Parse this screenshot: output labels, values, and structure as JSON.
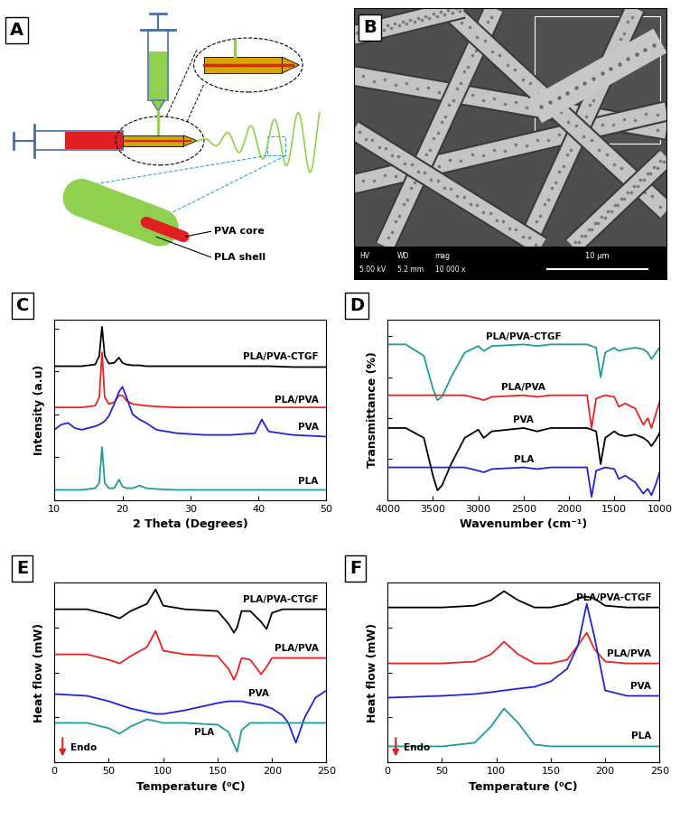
{
  "panel_A": {
    "label": "A",
    "core_label": "PVA core",
    "shell_label": "PLA shell"
  },
  "panel_B": {
    "label": "B",
    "info_headers": [
      "HV",
      "WD",
      "mag"
    ],
    "info_values": [
      "5.00 kV",
      "5.2 mm",
      "10 000 x"
    ],
    "scale_bar": "10 μm"
  },
  "chart_data": [
    {
      "type": "line",
      "title": "C",
      "x_label": "2 Theta (Degrees)",
      "y_label": "Intensity (a.u)",
      "x": [
        10,
        11,
        12,
        13,
        14,
        15,
        16,
        16.6,
        17.0,
        17.4,
        18,
        18.8,
        19.5,
        20.0,
        20.6,
        21.5,
        22.5,
        23.5,
        25,
        28,
        32,
        36,
        39.5,
        40.5,
        41.5,
        45,
        50
      ],
      "xlim": [
        10,
        50
      ],
      "xticks": [
        10,
        20,
        30,
        40,
        50
      ],
      "ylim": [
        0,
        105
      ],
      "yticks": [
        0,
        25,
        50,
        75,
        100
      ],
      "tick_labels": "x",
      "series": [
        {
          "name": "PLA/PVA-CTGF",
          "color": "#000000",
          "values": [
            78,
            78,
            78,
            78,
            78,
            78.5,
            79,
            84,
            101,
            84,
            79.5,
            80,
            83,
            80,
            79,
            78.5,
            78.5,
            78,
            78,
            78,
            78,
            78,
            78,
            78,
            78,
            77.5,
            77.5
          ]
        },
        {
          "name": "PLA/PVA",
          "color": "#e8231f",
          "values": [
            54,
            54,
            54,
            54,
            54,
            54.5,
            55,
            60,
            86,
            60,
            56,
            57,
            61,
            61,
            58,
            56,
            55.5,
            55,
            54.5,
            54,
            54,
            54,
            54,
            54,
            54,
            54,
            54
          ]
        },
        {
          "name": "PVA",
          "color": "#2323d6",
          "values": [
            41,
            44,
            45,
            42,
            41,
            42,
            43,
            44,
            45,
            46,
            49,
            56,
            63,
            66,
            60,
            50,
            47,
            45,
            41,
            39,
            38,
            38,
            39,
            47,
            40,
            38,
            37
          ]
        },
        {
          "name": "PLA",
          "color": "#1f9c9a",
          "values": [
            6,
            6,
            6,
            6,
            6,
            6.5,
            7,
            10,
            31,
            10,
            7,
            7,
            12,
            8,
            7,
            7,
            8.5,
            7,
            6.5,
            6,
            6,
            6,
            6,
            6,
            6,
            6,
            6
          ]
        }
      ]
    },
    {
      "type": "line",
      "title": "D",
      "x_label": "Wavenumber (cm⁻¹)",
      "y_label": "Transmittance (%)",
      "x": [
        4000,
        3800,
        3600,
        3500,
        3450,
        3400,
        3300,
        3150,
        3000,
        2940,
        2850,
        2500,
        2350,
        2200,
        2000,
        1800,
        1750,
        1700,
        1650,
        1600,
        1500,
        1450,
        1380,
        1270,
        1180,
        1130,
        1090,
        1040,
        1000
      ],
      "xlim": [
        4000,
        1000
      ],
      "xticks": [
        4000,
        3500,
        3000,
        2500,
        2000,
        1500,
        1000
      ],
      "ylim": [
        0,
        110
      ],
      "yticks": [
        0,
        25,
        50,
        75,
        100
      ],
      "tick_labels": "x",
      "series": [
        {
          "name": "PLA/PVA-CTGF",
          "color": "#1f9c9a",
          "values": [
            95,
            95,
            88,
            68,
            61,
            63,
            75,
            90,
            94,
            91,
            94,
            95,
            94,
            95,
            95,
            95,
            94,
            93,
            75,
            90,
            93,
            91,
            92,
            93,
            92,
            90,
            86,
            90,
            93
          ]
        },
        {
          "name": "PLA/PVA",
          "color": "#e8231f",
          "values": [
            64,
            64,
            64,
            64,
            64,
            64,
            64,
            64,
            62,
            61,
            63,
            64,
            63,
            64,
            64,
            64,
            44,
            62,
            63,
            64,
            63,
            57,
            59,
            56,
            46,
            50,
            44,
            53,
            60
          ]
        },
        {
          "name": "PVA",
          "color": "#000000",
          "values": [
            44,
            44,
            38,
            15,
            6,
            9,
            22,
            38,
            43,
            38,
            42,
            44,
            42,
            44,
            44,
            44,
            43,
            42,
            22,
            38,
            42,
            40,
            39,
            40,
            38,
            36,
            33,
            37,
            41
          ]
        },
        {
          "name": "PLA",
          "color": "#2323d6",
          "values": [
            20,
            20,
            20,
            20,
            20,
            20,
            20,
            20,
            18,
            17,
            19,
            20,
            19,
            20,
            20,
            20,
            2,
            18,
            19,
            20,
            19,
            13,
            15,
            11,
            4,
            7,
            3,
            10,
            17
          ]
        }
      ]
    },
    {
      "type": "line",
      "title": "E",
      "x_label": "Temperature (⁰C)",
      "y_label": "Heat flow (mW)",
      "annotation": "Endo",
      "x": [
        0,
        30,
        50,
        60,
        70,
        85,
        93,
        100,
        120,
        150,
        160,
        165,
        168,
        172,
        180,
        190,
        195,
        200,
        210,
        215,
        222,
        230,
        240,
        250
      ],
      "xlim": [
        0,
        250
      ],
      "xticks": [
        0,
        50,
        100,
        150,
        200,
        250
      ],
      "ylim": [
        0,
        100
      ],
      "yticks": [
        0,
        25,
        50,
        75,
        100
      ],
      "tick_labels": "x",
      "series": [
        {
          "name": "PLA/PVA-CTGF",
          "color": "#000000",
          "values": [
            85,
            85,
            82,
            80,
            84,
            88,
            96,
            87,
            85,
            84,
            77,
            72,
            75,
            84,
            84,
            78,
            74,
            83,
            85,
            85,
            85,
            85,
            85,
            85
          ]
        },
        {
          "name": "PLA/PVA",
          "color": "#e8231f",
          "values": [
            60,
            60,
            57,
            55,
            59,
            64,
            73,
            62,
            60,
            59,
            52,
            46,
            50,
            58,
            57,
            49,
            53,
            58,
            58,
            58,
            58,
            58,
            58,
            58
          ]
        },
        {
          "name": "PVA",
          "color": "#2323d6",
          "values": [
            38,
            37,
            34,
            32,
            30,
            28,
            27,
            27,
            29,
            33,
            34,
            34,
            34,
            34,
            33,
            32,
            31,
            30,
            26,
            22,
            11,
            25,
            36,
            40
          ]
        },
        {
          "name": "PLA",
          "color": "#1f9c9a",
          "values": [
            22,
            22,
            19,
            16,
            20,
            24,
            23,
            22,
            22,
            21,
            17,
            10,
            6,
            18,
            22,
            22,
            22,
            22,
            22,
            22,
            22,
            22,
            22,
            22
          ]
        }
      ]
    },
    {
      "type": "line",
      "title": "F",
      "x_label": "Temperature (⁰C)",
      "y_label": "Heat flow (mW)",
      "annotation": "Endo",
      "x": [
        0,
        50,
        80,
        95,
        107,
        120,
        135,
        150,
        165,
        175,
        183,
        190,
        200,
        220,
        250
      ],
      "xlim": [
        0,
        250
      ],
      "xticks": [
        0,
        50,
        100,
        150,
        200,
        250
      ],
      "ylim": [
        0,
        100
      ],
      "yticks": [
        0,
        25,
        50,
        75,
        100
      ],
      "tick_labels": "x",
      "series": [
        {
          "name": "PLA/PVA-CTGF",
          "color": "#000000",
          "values": [
            86,
            86,
            87,
            90,
            95,
            90,
            86,
            86,
            88,
            91,
            92,
            91,
            87,
            86,
            86
          ]
        },
        {
          "name": "PLA/PVA",
          "color": "#e8231f",
          "values": [
            55,
            55,
            56,
            60,
            67,
            60,
            55,
            55,
            57,
            65,
            72,
            63,
            56,
            55,
            55
          ]
        },
        {
          "name": "PVA",
          "color": "#2323d6",
          "values": [
            36,
            37,
            38,
            39,
            40,
            41,
            42,
            45,
            52,
            65,
            88,
            70,
            40,
            37,
            37
          ]
        },
        {
          "name": "PLA",
          "color": "#1f9c9a",
          "values": [
            9,
            9,
            11,
            20,
            30,
            22,
            10,
            9,
            9,
            9,
            9,
            9,
            9,
            9,
            9
          ]
        }
      ]
    }
  ]
}
